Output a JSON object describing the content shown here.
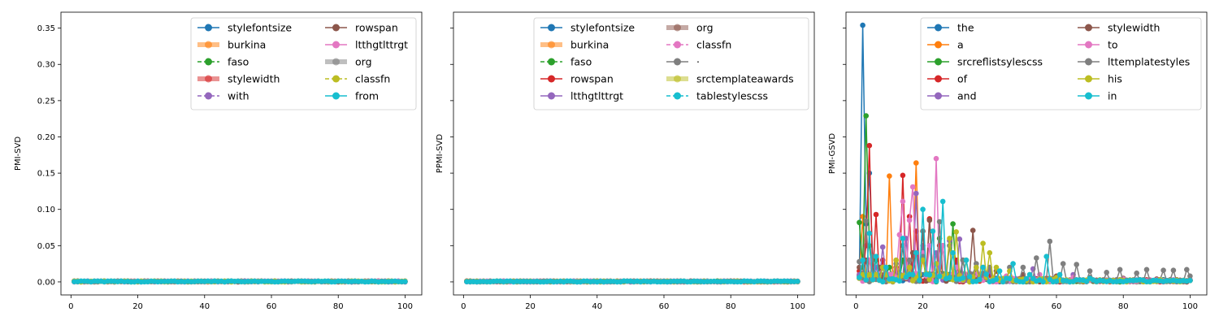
{
  "chart_data": [
    {
      "type": "line",
      "ylabel": "PMI-SVD",
      "xlim": [
        -3,
        105
      ],
      "ylim": [
        -0.018,
        0.372
      ],
      "xticks": [
        0,
        20,
        40,
        60,
        80,
        100
      ],
      "yticks": [
        0.0,
        0.05,
        0.1,
        0.15,
        0.2,
        0.25,
        0.3,
        0.35
      ],
      "ytick_labels": [
        "0.00",
        "0.05",
        "0.10",
        "0.15",
        "0.20",
        "0.25",
        "0.30",
        "0.35"
      ],
      "show_yticklabels": true,
      "legend": {
        "placement": "upper-right",
        "columns": 2
      },
      "series": [
        {
          "name": "stylefontsize",
          "color": "#1f77b4",
          "style": "solid"
        },
        {
          "name": "burkina",
          "color": "#ff7f0e",
          "style": "thick"
        },
        {
          "name": "faso",
          "color": "#2ca02c",
          "style": "dashed"
        },
        {
          "name": "stylewidth",
          "color": "#d62728",
          "style": "thick"
        },
        {
          "name": "with",
          "color": "#9467bd",
          "style": "dashed"
        },
        {
          "name": "rowspan",
          "color": "#8c564b",
          "style": "solid"
        },
        {
          "name": "ltthgtlttrgt",
          "color": "#e377c2",
          "style": "solid"
        },
        {
          "name": "org",
          "color": "#7f7f7f",
          "style": "thick"
        },
        {
          "name": "classfn",
          "color": "#bcbd22",
          "style": "dashed"
        },
        {
          "name": "from",
          "color": "#17becf",
          "style": "solid"
        }
      ],
      "pattern": "flat-zero",
      "points_per_series": 100
    },
    {
      "type": "line",
      "ylabel": "PPMI-SVD",
      "xlim": [
        -3,
        105
      ],
      "ylim": [
        -0.018,
        0.372
      ],
      "xticks": [
        0,
        20,
        40,
        60,
        80,
        100
      ],
      "yticks": [
        0.0,
        0.05,
        0.1,
        0.15,
        0.2,
        0.25,
        0.3,
        0.35
      ],
      "ytick_labels": [],
      "show_yticklabels": false,
      "legend": {
        "placement": "upper-right",
        "columns": 2
      },
      "series": [
        {
          "name": "stylefontsize",
          "color": "#1f77b4",
          "style": "solid"
        },
        {
          "name": "burkina",
          "color": "#ff7f0e",
          "style": "thick"
        },
        {
          "name": "faso",
          "color": "#2ca02c",
          "style": "dashed"
        },
        {
          "name": "rowspan",
          "color": "#d62728",
          "style": "solid"
        },
        {
          "name": "ltthgtlttrgt",
          "color": "#9467bd",
          "style": "solid"
        },
        {
          "name": "org",
          "color": "#8c564b",
          "style": "thick"
        },
        {
          "name": "classfn",
          "color": "#e377c2",
          "style": "dashed"
        },
        {
          "name": "·",
          "color": "#7f7f7f",
          "style": "solid"
        },
        {
          "name": "srctemplateawards",
          "color": "#bcbd22",
          "style": "thick"
        },
        {
          "name": "tablestylescss",
          "color": "#17becf",
          "style": "dashed"
        }
      ],
      "pattern": "flat-zero",
      "points_per_series": 100
    },
    {
      "type": "line",
      "ylabel": "PMI-GSVD",
      "xlim": [
        -3,
        105
      ],
      "ylim": [
        -0.018,
        0.372
      ],
      "xticks": [
        0,
        20,
        40,
        60,
        80,
        100
      ],
      "yticks": [
        0.0,
        0.05,
        0.1,
        0.15,
        0.2,
        0.25,
        0.3,
        0.35
      ],
      "ytick_labels": [],
      "show_yticklabels": false,
      "legend": {
        "placement": "upper-right",
        "columns": 2
      },
      "series": [
        {
          "name": "the",
          "color": "#1f77b4",
          "style": "solid",
          "peaks": [
            [
              1,
              0.008
            ],
            [
              2,
              0.354
            ],
            [
              3,
              0.08
            ],
            [
              4,
              0.15
            ],
            [
              5,
              0.03
            ],
            [
              8,
              0.02
            ],
            [
              12,
              0.015
            ],
            [
              20,
              0.01
            ],
            [
              30,
              0.006
            ],
            [
              45,
              0.004
            ],
            [
              60,
              0.003
            ],
            [
              80,
              0.002
            ],
            [
              100,
              0.002
            ]
          ]
        },
        {
          "name": "a",
          "color": "#ff7f0e",
          "style": "solid",
          "peaks": [
            [
              1,
              0.01
            ],
            [
              2,
              0.09
            ],
            [
              4,
              0.03
            ],
            [
              7,
              0.02
            ],
            [
              10,
              0.146
            ],
            [
              12,
              0.02
            ],
            [
              15,
              0.03
            ],
            [
              18,
              0.164
            ],
            [
              20,
              0.03
            ],
            [
              25,
              0.02
            ],
            [
              30,
              0.01
            ],
            [
              40,
              0.005
            ],
            [
              60,
              0.003
            ],
            [
              80,
              0.002
            ],
            [
              100,
              0.002
            ]
          ]
        },
        {
          "name": "srcreflistsylescss",
          "color": "#2ca02c",
          "style": "solid",
          "peaks": [
            [
              1,
              0.082
            ],
            [
              2,
              0.02
            ],
            [
              3,
              0.229
            ],
            [
              4,
              0.05
            ],
            [
              6,
              0.03
            ],
            [
              10,
              0.02
            ],
            [
              14,
              0.03
            ],
            [
              20,
              0.04
            ],
            [
              25,
              0.06
            ],
            [
              29,
              0.08
            ],
            [
              32,
              0.03
            ],
            [
              40,
              0.01
            ],
            [
              60,
              0.004
            ],
            [
              80,
              0.003
            ],
            [
              100,
              0.002
            ]
          ]
        },
        {
          "name": "of",
          "color": "#d62728",
          "style": "solid",
          "peaks": [
            [
              1,
              0.015
            ],
            [
              3,
              0.05
            ],
            [
              4,
              0.188
            ],
            [
              6,
              0.093
            ],
            [
              8,
              0.03
            ],
            [
              12,
              0.02
            ],
            [
              14,
              0.147
            ],
            [
              16,
              0.09
            ],
            [
              18,
              0.07
            ],
            [
              22,
              0.087
            ],
            [
              25,
              0.05
            ],
            [
              30,
              0.03
            ],
            [
              40,
              0.01
            ],
            [
              60,
              0.004
            ],
            [
              80,
              0.003
            ],
            [
              100,
              0.002
            ]
          ]
        },
        {
          "name": "and",
          "color": "#9467bd",
          "style": "solid",
          "peaks": [
            [
              1,
              0.01
            ],
            [
              3,
              0.03
            ],
            [
              6,
              0.02
            ],
            [
              8,
              0.048
            ],
            [
              12,
              0.03
            ],
            [
              15,
              0.06
            ],
            [
              18,
              0.122
            ],
            [
              20,
              0.05
            ],
            [
              24,
              0.04
            ],
            [
              28,
              0.057
            ],
            [
              31,
              0.059
            ],
            [
              36,
              0.02
            ],
            [
              40,
              0.015
            ],
            [
              53,
              0.018
            ],
            [
              65,
              0.01
            ],
            [
              80,
              0.004
            ],
            [
              100,
              0.003
            ]
          ]
        },
        {
          "name": "stylewidth",
          "color": "#8c564b",
          "style": "solid",
          "peaks": [
            [
              1,
              0.02
            ],
            [
              3,
              0.03
            ],
            [
              7,
              0.02
            ],
            [
              10,
              0.01
            ],
            [
              14,
              0.05
            ],
            [
              17,
              0.04
            ],
            [
              20,
              0.07
            ],
            [
              22,
              0.085
            ],
            [
              26,
              0.05
            ],
            [
              30,
              0.02
            ],
            [
              35,
              0.071
            ],
            [
              38,
              0.02
            ],
            [
              42,
              0.015
            ],
            [
              50,
              0.01
            ],
            [
              60,
              0.008
            ],
            [
              70,
              0.006
            ],
            [
              80,
              0.005
            ],
            [
              90,
              0.004
            ],
            [
              100,
              0.003
            ]
          ]
        },
        {
          "name": "to",
          "color": "#e377c2",
          "style": "solid",
          "peaks": [
            [
              1,
              0.005
            ],
            [
              4,
              0.03
            ],
            [
              8,
              0.02
            ],
            [
              13,
              0.065
            ],
            [
              14,
              0.111
            ],
            [
              16,
              0.085
            ],
            [
              17,
              0.131
            ],
            [
              20,
              0.04
            ],
            [
              22,
              0.05
            ],
            [
              24,
              0.17
            ],
            [
              26,
              0.05
            ],
            [
              30,
              0.02
            ],
            [
              36,
              0.01
            ],
            [
              45,
              0.008
            ],
            [
              55,
              0.01
            ],
            [
              65,
              0.006
            ],
            [
              80,
              0.004
            ],
            [
              100,
              0.003
            ]
          ]
        },
        {
          "name": "lttemplatestyles",
          "color": "#7f7f7f",
          "style": "solid",
          "peaks": [
            [
              1,
              0.028
            ],
            [
              3,
              0.084
            ],
            [
              5,
              0.035
            ],
            [
              8,
              0.02
            ],
            [
              12,
              0.025
            ],
            [
              16,
              0.03
            ],
            [
              20,
              0.035
            ],
            [
              25,
              0.083
            ],
            [
              28,
              0.05
            ],
            [
              32,
              0.03
            ],
            [
              36,
              0.025
            ],
            [
              40,
              0.02
            ],
            [
              46,
              0.02
            ],
            [
              50,
              0.02
            ],
            [
              54,
              0.033
            ],
            [
              58,
              0.056
            ],
            [
              62,
              0.025
            ],
            [
              66,
              0.024
            ],
            [
              70,
              0.015
            ],
            [
              75,
              0.013
            ],
            [
              79,
              0.017
            ],
            [
              84,
              0.012
            ],
            [
              87,
              0.017
            ],
            [
              92,
              0.016
            ],
            [
              95,
              0.016
            ],
            [
              99,
              0.017
            ],
            [
              100,
              0.008
            ]
          ]
        },
        {
          "name": "his",
          "color": "#bcbd22",
          "style": "solid",
          "peaks": [
            [
              1,
              0.005
            ],
            [
              4,
              0.01
            ],
            [
              8,
              0.02
            ],
            [
              12,
              0.03
            ],
            [
              16,
              0.02
            ],
            [
              20,
              0.03
            ],
            [
              24,
              0.025
            ],
            [
              28,
              0.06
            ],
            [
              30,
              0.069
            ],
            [
              33,
              0.03
            ],
            [
              36,
              0.02
            ],
            [
              38,
              0.053
            ],
            [
              40,
              0.04
            ],
            [
              42,
              0.02
            ],
            [
              46,
              0.015
            ],
            [
              52,
              0.01
            ],
            [
              60,
              0.006
            ],
            [
              70,
              0.004
            ],
            [
              85,
              0.003
            ],
            [
              100,
              0.002
            ]
          ]
        },
        {
          "name": "in",
          "color": "#17becf",
          "style": "solid",
          "peaks": [
            [
              1,
              0.006
            ],
            [
              2,
              0.03
            ],
            [
              4,
              0.067
            ],
            [
              6,
              0.035
            ],
            [
              9,
              0.02
            ],
            [
              14,
              0.06
            ],
            [
              18,
              0.04
            ],
            [
              20,
              0.1
            ],
            [
              23,
              0.07
            ],
            [
              26,
              0.111
            ],
            [
              29,
              0.04
            ],
            [
              33,
              0.03
            ],
            [
              38,
              0.02
            ],
            [
              43,
              0.015
            ],
            [
              47,
              0.025
            ],
            [
              52,
              0.01
            ],
            [
              57,
              0.035
            ],
            [
              61,
              0.01
            ],
            [
              70,
              0.005
            ],
            [
              85,
              0.003
            ],
            [
              100,
              0.002
            ]
          ]
        }
      ],
      "pattern": "peaks",
      "points_per_series": 100
    }
  ]
}
